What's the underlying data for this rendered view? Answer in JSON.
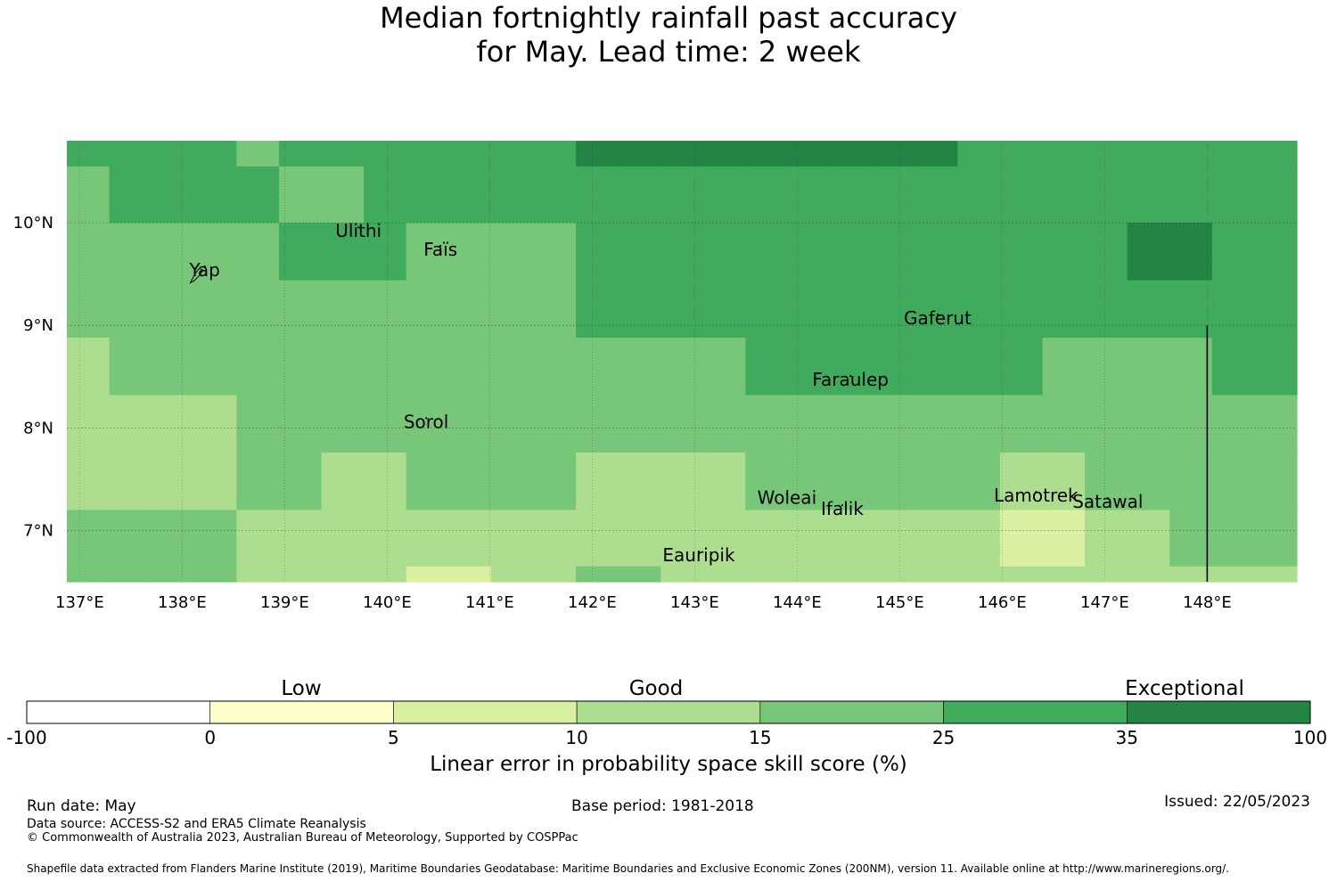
{
  "title": {
    "line1": "Median fortnightly rainfall past accuracy",
    "line2": "for May. Lead time: 2 week"
  },
  "map": {
    "lon_ticks": [
      "137°E",
      "138°E",
      "139°E",
      "140°E",
      "141°E",
      "142°E",
      "143°E",
      "144°E",
      "145°E",
      "146°E",
      "147°E",
      "148°E"
    ],
    "lat_ticks": [
      "10°N",
      "9°N",
      "8°N",
      "7°N"
    ],
    "lon_tick_values": [
      137,
      138,
      139,
      140,
      141,
      142,
      143,
      144,
      145,
      146,
      147,
      148
    ],
    "lat_tick_values": [
      10,
      9,
      8,
      7
    ],
    "lon_range": [
      136.875,
      148.875
    ],
    "lat_range": [
      6.5,
      10.8
    ],
    "places": [
      {
        "name": "Yap",
        "lon": 138.22,
        "lat": 9.48
      },
      {
        "name": "Ulithi",
        "lon": 139.72,
        "lat": 9.86
      },
      {
        "name": "Faïs",
        "lon": 140.52,
        "lat": 9.68
      },
      {
        "name": "Sorol",
        "lon": 140.38,
        "lat": 8.0
      },
      {
        "name": "Gaferut",
        "lon": 145.37,
        "lat": 9.01
      },
      {
        "name": "Faraulep",
        "lon": 144.52,
        "lat": 8.41
      },
      {
        "name": "Woleai",
        "lon": 143.9,
        "lat": 7.26
      },
      {
        "name": "Ifalik",
        "lon": 144.44,
        "lat": 7.15
      },
      {
        "name": "Lamotrek",
        "lon": 146.33,
        "lat": 7.28
      },
      {
        "name": "Satawal",
        "lon": 147.03,
        "lat": 7.22
      },
      {
        "name": "Eauripik",
        "lon": 143.04,
        "lat": 6.7
      }
    ],
    "colors": [
      "#ffffff",
      "#ffffcc",
      "#d9f0a3",
      "#addd8e",
      "#78c679",
      "#41ab5d",
      "#238443"
    ],
    "grid_rows": [
      {
        "lat_top": 10.8,
        "lat_bottom": 10.55,
        "cells": [
          5,
          5,
          5,
          5,
          4,
          5,
          5,
          5,
          5,
          5,
          5,
          5,
          6,
          6,
          6,
          6,
          6,
          6,
          6,
          6,
          6,
          5,
          5,
          5,
          5,
          5,
          5,
          5,
          5
        ]
      },
      {
        "lat_top": 10.55,
        "lat_bottom": 10.0,
        "cells": [
          4,
          5,
          5,
          5,
          5,
          4,
          4,
          5,
          5,
          5,
          5,
          5,
          5,
          5,
          5,
          5,
          5,
          5,
          5,
          5,
          5,
          5,
          5,
          5,
          5,
          5,
          5,
          5,
          5
        ]
      },
      {
        "lat_top": 10.0,
        "lat_bottom": 9.44,
        "cells": [
          4,
          4,
          4,
          4,
          4,
          5,
          5,
          5,
          4,
          4,
          4,
          4,
          5,
          5,
          5,
          5,
          5,
          5,
          5,
          5,
          5,
          5,
          5,
          5,
          5,
          6,
          6,
          5,
          5
        ]
      },
      {
        "lat_top": 9.44,
        "lat_bottom": 8.88,
        "cells": [
          4,
          4,
          4,
          4,
          4,
          4,
          4,
          4,
          4,
          4,
          4,
          4,
          5,
          5,
          5,
          5,
          5,
          5,
          5,
          5,
          5,
          5,
          5,
          5,
          5,
          5,
          5,
          5,
          5
        ]
      },
      {
        "lat_top": 8.88,
        "lat_bottom": 8.32,
        "cells": [
          3,
          4,
          4,
          4,
          4,
          4,
          4,
          4,
          4,
          4,
          4,
          4,
          4,
          4,
          4,
          4,
          5,
          5,
          5,
          5,
          5,
          5,
          5,
          4,
          4,
          4,
          4,
          5,
          5
        ]
      },
      {
        "lat_top": 8.32,
        "lat_bottom": 7.76,
        "cells": [
          3,
          3,
          3,
          3,
          4,
          4,
          4,
          4,
          4,
          4,
          4,
          4,
          4,
          4,
          4,
          4,
          4,
          4,
          4,
          4,
          4,
          4,
          4,
          4,
          4,
          4,
          4,
          4,
          4
        ]
      },
      {
        "lat_top": 7.76,
        "lat_bottom": 7.2,
        "cells": [
          3,
          3,
          3,
          3,
          4,
          4,
          3,
          3,
          4,
          4,
          4,
          4,
          3,
          3,
          3,
          3,
          4,
          4,
          4,
          4,
          4,
          4,
          3,
          3,
          4,
          4,
          4,
          4,
          4
        ]
      },
      {
        "lat_top": 7.2,
        "lat_bottom": 6.65,
        "cells": [
          4,
          4,
          4,
          4,
          3,
          3,
          3,
          3,
          3,
          3,
          3,
          3,
          3,
          3,
          3,
          3,
          3,
          3,
          3,
          3,
          3,
          3,
          2,
          2,
          3,
          3,
          4,
          4,
          4
        ]
      },
      {
        "lat_top": 6.65,
        "lat_bottom": 6.5,
        "cells": [
          4,
          4,
          4,
          4,
          3,
          3,
          3,
          3,
          2,
          2,
          3,
          3,
          4,
          4,
          3,
          3,
          3,
          3,
          3,
          3,
          3,
          3,
          3,
          3,
          3,
          3,
          3,
          3,
          3
        ]
      }
    ],
    "vertical_line_lon": 148.0,
    "vertical_line_lat_top": 9.0
  },
  "colorbar": {
    "categories": [
      "Low",
      "Good",
      "Exceptional"
    ],
    "ticks": [
      "-100",
      "0",
      "5",
      "10",
      "15",
      "25",
      "35",
      "100"
    ],
    "colors": [
      "#ffffff",
      "#ffffcc",
      "#d9f0a3",
      "#addd8e",
      "#78c679",
      "#41ab5d",
      "#238443"
    ],
    "label": "Linear error in probability space skill score (%)"
  },
  "footer": {
    "run_date": "Run date: May",
    "base_period": "Base period: 1981-2018",
    "issued": "Issued: 22/05/2023",
    "data_source": "Data source: ACCESS-S2 and ERA5 Climate Reanalysis",
    "copyright": "© Commonwealth of Australia 2023, Australian Bureau of Meteorology, Supported by COSPPac",
    "shapefile": "Shapefile data extracted from Flanders Marine Institute (2019), Maritime Boundaries Geodatabase: Maritime Boundaries and Exclusive Economic Zones (200NM), version 11. Available online at http://www.marineregions.org/."
  }
}
